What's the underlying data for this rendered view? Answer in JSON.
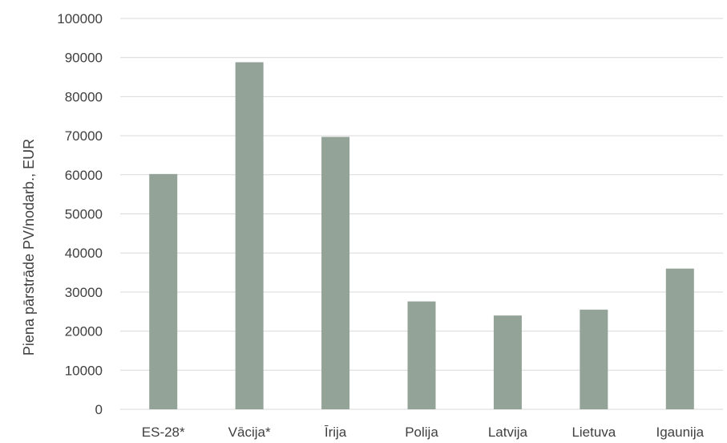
{
  "chart_data": {
    "type": "bar",
    "title": "",
    "xlabel": "",
    "ylabel": "Piena pārstrāde PV/nodarb., EUR",
    "categories": [
      "ES-28*",
      "Vācija*",
      "Īrija",
      "Polija",
      "Latvija",
      "Lietuva",
      "Igaunija"
    ],
    "values": [
      60200,
      88800,
      69700,
      27600,
      24000,
      25500,
      36000
    ],
    "ylim": [
      0,
      100000
    ],
    "yticks": [
      "0",
      "10000",
      "20000",
      "30000",
      "40000",
      "50000",
      "60000",
      "70000",
      "80000",
      "90000",
      "100000"
    ],
    "grid": true,
    "legend": "none",
    "bar_color": "#93a397"
  }
}
